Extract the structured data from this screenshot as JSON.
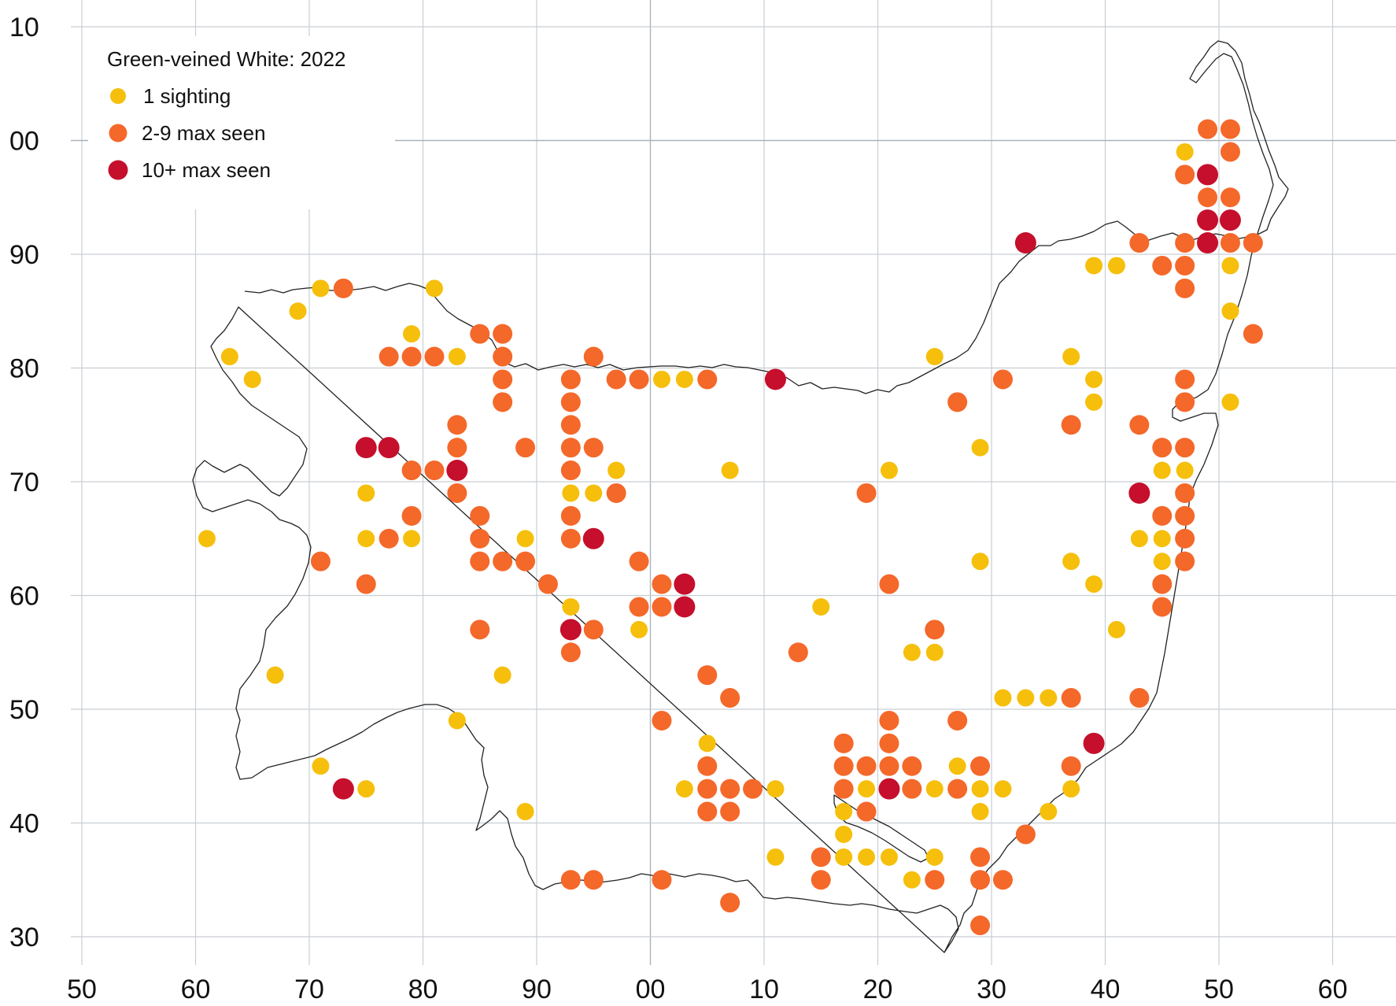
{
  "title": "Green-veined White:  2022",
  "legend": [
    {
      "key": "1",
      "label": "1 sighting",
      "color": "#f5bf0c"
    },
    {
      "key": "2-9",
      "label": "2-9 max seen",
      "color": "#f4682a"
    },
    {
      "key": "10+",
      "label": "10+ max seen",
      "color": "#c50f2c"
    }
  ],
  "x_ticks": [
    "50",
    "60",
    "70",
    "80",
    "90",
    "00",
    "10",
    "20",
    "30",
    "40",
    "50",
    "60"
  ],
  "y_ticks": [
    "10",
    "00",
    "90",
    "80",
    "70",
    "60",
    "50",
    "40",
    "30"
  ],
  "chart_data": {
    "type": "scatter",
    "title": "Green-veined White:  2022",
    "x_range": [
      50,
      160
    ],
    "y_range": [
      30,
      110
    ],
    "grid": true,
    "legend_position": "top-left",
    "series": [
      {
        "name": "1 sighting",
        "color": "#f5bf0c",
        "points": [
          [
            61,
            65
          ],
          [
            63,
            81
          ],
          [
            65,
            79
          ],
          [
            67,
            53
          ],
          [
            69,
            85
          ],
          [
            71,
            87
          ],
          [
            71,
            45
          ],
          [
            75,
            69
          ],
          [
            75,
            65
          ],
          [
            75,
            43
          ],
          [
            79,
            83
          ],
          [
            79,
            65
          ],
          [
            81,
            87
          ],
          [
            83,
            81
          ],
          [
            83,
            49
          ],
          [
            87,
            53
          ],
          [
            89,
            65
          ],
          [
            89,
            41
          ],
          [
            93,
            69
          ],
          [
            93,
            59
          ],
          [
            95,
            69
          ],
          [
            97,
            71
          ],
          [
            99,
            57
          ],
          [
            101,
            79
          ],
          [
            103,
            79
          ],
          [
            103,
            43
          ],
          [
            105,
            47
          ],
          [
            107,
            71
          ],
          [
            111,
            43
          ],
          [
            111,
            37
          ],
          [
            115,
            59
          ],
          [
            117,
            41
          ],
          [
            117,
            39
          ],
          [
            117,
            37
          ],
          [
            119,
            43
          ],
          [
            119,
            37
          ],
          [
            121,
            71
          ],
          [
            121,
            37
          ],
          [
            123,
            55
          ],
          [
            123,
            35
          ],
          [
            125,
            81
          ],
          [
            125,
            55
          ],
          [
            125,
            43
          ],
          [
            125,
            37
          ],
          [
            127,
            45
          ],
          [
            129,
            73
          ],
          [
            129,
            63
          ],
          [
            129,
            43
          ],
          [
            129,
            41
          ],
          [
            131,
            51
          ],
          [
            131,
            43
          ],
          [
            133,
            51
          ],
          [
            135,
            51
          ],
          [
            135,
            41
          ],
          [
            137,
            81
          ],
          [
            137,
            63
          ],
          [
            137,
            43
          ],
          [
            139,
            89
          ],
          [
            139,
            79
          ],
          [
            139,
            77
          ],
          [
            139,
            61
          ],
          [
            141,
            89
          ],
          [
            141,
            57
          ],
          [
            143,
            65
          ],
          [
            145,
            71
          ],
          [
            145,
            65
          ],
          [
            145,
            63
          ],
          [
            147,
            99
          ],
          [
            147,
            71
          ],
          [
            151,
            89
          ],
          [
            151,
            85
          ],
          [
            151,
            77
          ]
        ]
      },
      {
        "name": "2-9 max seen",
        "color": "#f4682a",
        "points": [
          [
            71,
            63
          ],
          [
            73,
            87
          ],
          [
            75,
            61
          ],
          [
            77,
            81
          ],
          [
            77,
            65
          ],
          [
            79,
            81
          ],
          [
            79,
            71
          ],
          [
            79,
            67
          ],
          [
            81,
            81
          ],
          [
            81,
            71
          ],
          [
            83,
            75
          ],
          [
            83,
            73
          ],
          [
            83,
            69
          ],
          [
            85,
            83
          ],
          [
            85,
            67
          ],
          [
            85,
            65
          ],
          [
            85,
            63
          ],
          [
            85,
            57
          ],
          [
            87,
            83
          ],
          [
            87,
            81
          ],
          [
            87,
            79
          ],
          [
            87,
            77
          ],
          [
            87,
            63
          ],
          [
            89,
            73
          ],
          [
            89,
            63
          ],
          [
            91,
            61
          ],
          [
            93,
            79
          ],
          [
            93,
            77
          ],
          [
            93,
            75
          ],
          [
            93,
            73
          ],
          [
            93,
            71
          ],
          [
            93,
            67
          ],
          [
            93,
            65
          ],
          [
            93,
            55
          ],
          [
            93,
            35
          ],
          [
            95,
            81
          ],
          [
            95,
            73
          ],
          [
            95,
            57
          ],
          [
            95,
            35
          ],
          [
            97,
            79
          ],
          [
            97,
            69
          ],
          [
            99,
            79
          ],
          [
            99,
            63
          ],
          [
            99,
            59
          ],
          [
            101,
            61
          ],
          [
            101,
            59
          ],
          [
            101,
            49
          ],
          [
            101,
            35
          ],
          [
            105,
            79
          ],
          [
            105,
            53
          ],
          [
            105,
            45
          ],
          [
            105,
            43
          ],
          [
            105,
            41
          ],
          [
            107,
            51
          ],
          [
            107,
            43
          ],
          [
            107,
            41
          ],
          [
            107,
            33
          ],
          [
            109,
            43
          ],
          [
            113,
            55
          ],
          [
            115,
            37
          ],
          [
            115,
            35
          ],
          [
            117,
            47
          ],
          [
            117,
            45
          ],
          [
            117,
            43
          ],
          [
            119,
            45
          ],
          [
            119,
            41
          ],
          [
            119,
            69
          ],
          [
            121,
            61
          ],
          [
            121,
            49
          ],
          [
            121,
            47
          ],
          [
            121,
            45
          ],
          [
            123,
            45
          ],
          [
            123,
            43
          ],
          [
            125,
            57
          ],
          [
            125,
            35
          ],
          [
            127,
            77
          ],
          [
            127,
            49
          ],
          [
            127,
            43
          ],
          [
            129,
            45
          ],
          [
            129,
            37
          ],
          [
            129,
            35
          ],
          [
            129,
            31
          ],
          [
            131,
            79
          ],
          [
            131,
            35
          ],
          [
            133,
            39
          ],
          [
            137,
            75
          ],
          [
            137,
            51
          ],
          [
            137,
            45
          ],
          [
            143,
            91
          ],
          [
            143,
            75
          ],
          [
            143,
            51
          ],
          [
            145,
            89
          ],
          [
            145,
            73
          ],
          [
            145,
            67
          ],
          [
            145,
            61
          ],
          [
            145,
            59
          ],
          [
            147,
            97
          ],
          [
            147,
            91
          ],
          [
            147,
            89
          ],
          [
            147,
            87
          ],
          [
            147,
            79
          ],
          [
            147,
            77
          ],
          [
            147,
            73
          ],
          [
            147,
            69
          ],
          [
            147,
            67
          ],
          [
            147,
            65
          ],
          [
            147,
            63
          ],
          [
            149,
            101
          ],
          [
            149,
            95
          ],
          [
            151,
            101
          ],
          [
            151,
            99
          ],
          [
            151,
            95
          ],
          [
            151,
            91
          ],
          [
            153,
            91
          ],
          [
            153,
            83
          ]
        ]
      },
      {
        "name": "10+ max seen",
        "color": "#c50f2c",
        "points": [
          [
            73,
            43
          ],
          [
            75,
            73
          ],
          [
            77,
            73
          ],
          [
            83,
            71
          ],
          [
            93,
            57
          ],
          [
            95,
            65
          ],
          [
            103,
            61
          ],
          [
            103,
            59
          ],
          [
            111,
            79
          ],
          [
            121,
            43
          ],
          [
            133,
            91
          ],
          [
            139,
            47
          ],
          [
            143,
            69
          ],
          [
            149,
            97
          ],
          [
            149,
            93
          ],
          [
            149,
            91
          ],
          [
            151,
            93
          ]
        ]
      }
    ]
  }
}
